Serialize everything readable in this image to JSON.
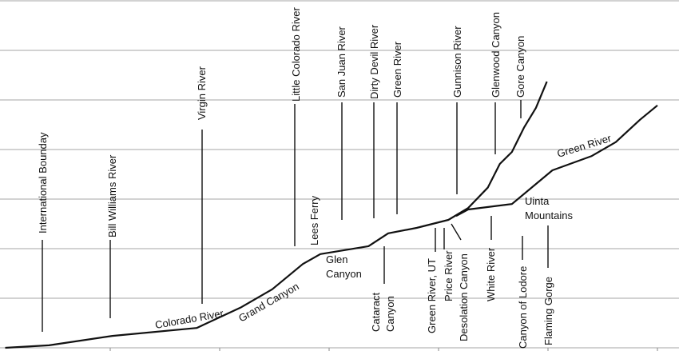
{
  "chart_data": {
    "type": "line",
    "xlim": [
      0,
      6.2
    ],
    "ylim": [
      0,
      7
    ],
    "xticks": [
      1,
      2,
      3,
      4,
      5,
      6
    ],
    "yticks": [
      0,
      1,
      2,
      3,
      4,
      5,
      6,
      7
    ],
    "grid": true,
    "series": [
      {
        "color": "#111111",
        "x": [
          0.04,
          0.44,
          1.02,
          1.79,
          2.19,
          2.48,
          2.76,
          2.92,
          3.36,
          3.54,
          3.8,
          4.09,
          4.27,
          4.45,
          4.56,
          4.67,
          4.78,
          4.89,
          4.99
        ],
        "values": [
          0,
          0.05,
          0.24,
          0.4,
          0.81,
          1.18,
          1.69,
          1.89,
          2.05,
          2.31,
          2.42,
          2.58,
          2.82,
          3.23,
          3.71,
          3.95,
          4.44,
          4.84,
          5.37
        ]
      },
      {
        "color": "#111111",
        "x": [
          4.16,
          4.27,
          4.67,
          5.04,
          5.4,
          5.62,
          5.84,
          6.0
        ],
        "values": [
          2.66,
          2.79,
          2.9,
          3.58,
          3.87,
          4.15,
          4.6,
          4.89
        ]
      }
    ],
    "annotations": [
      {
        "text": "International Bounday"
      },
      {
        "text": "Bill  Williams River"
      },
      {
        "text": "Virgin River"
      },
      {
        "text": "Little Colorado River"
      },
      {
        "text": "San Juan River"
      },
      {
        "text": "Dirty Devil River"
      },
      {
        "text": "Green River"
      },
      {
        "text": "Gunnison River"
      },
      {
        "text": "Glenwood Canyon"
      },
      {
        "text": "Gore Canyon"
      },
      {
        "text": "Lees Ferry"
      },
      {
        "lines": [
          "Glen",
          "Canyon"
        ]
      },
      {
        "lines": [
          "Cataract",
          "Canyon"
        ]
      },
      {
        "text": "Green River, UT"
      },
      {
        "text": "Price River"
      },
      {
        "text": "Desolation Canyon"
      },
      {
        "text": "White River"
      },
      {
        "text": "Canyon of Lodore"
      },
      {
        "text": "Flaming Gorge"
      },
      {
        "lines": [
          "Uinta",
          "Mountains"
        ]
      },
      {
        "text": "Colorado River"
      },
      {
        "text": "Grand Canyon"
      },
      {
        "text": "Green River"
      }
    ]
  }
}
